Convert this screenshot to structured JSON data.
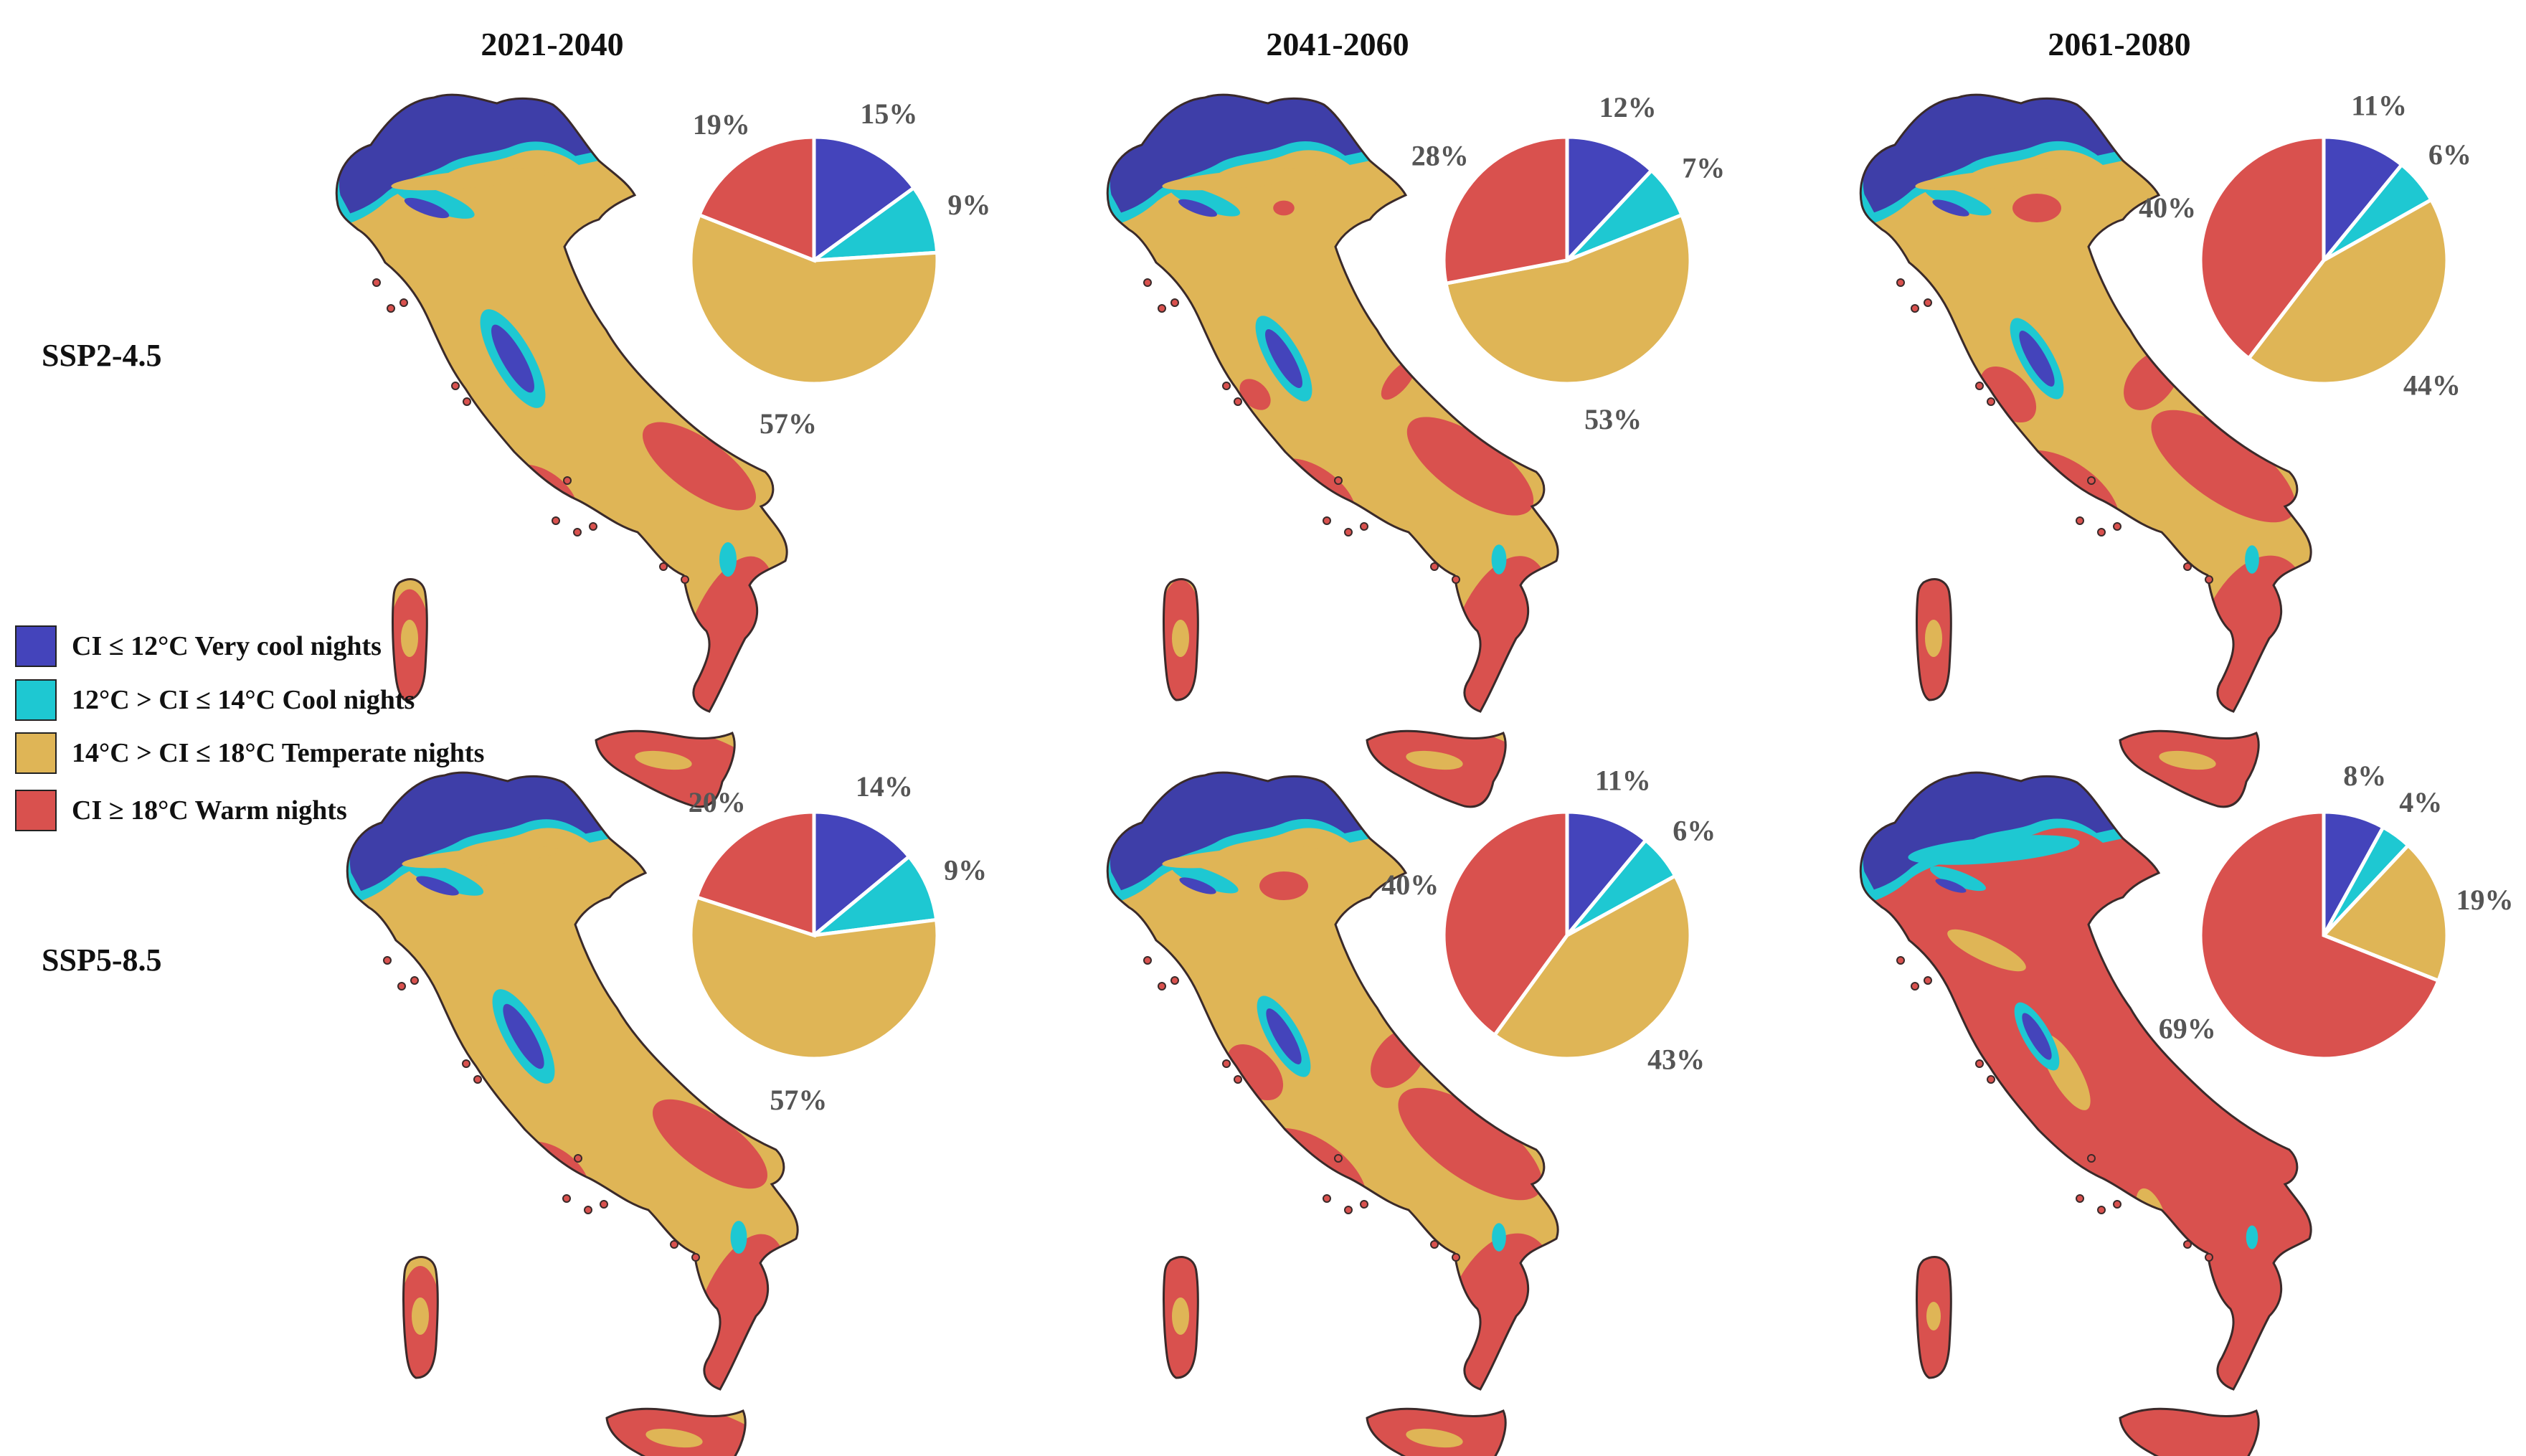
{
  "periods": [
    "2021-2040",
    "2041-2060",
    "2061-2080"
  ],
  "scenarios": [
    "SSP2-4.5",
    "SSP5-8.5"
  ],
  "colors": {
    "very_cool": "#4444bb",
    "cool": "#1ec8d2",
    "temperate": "#dfb556",
    "warm": "#d9514e",
    "mountain_shade": "#3e3ea8",
    "outline": "#3a2a2a"
  },
  "legend": [
    {
      "key": "very_cool",
      "label": "CI ≤ 12°C Very cool nights"
    },
    {
      "key": "cool",
      "label": "12°C > CI ≤ 14°C Cool nights"
    },
    {
      "key": "temperate",
      "label": "14°C > CI ≤ 18°C Temperate nights"
    },
    {
      "key": "warm",
      "label": "CI ≥ 18°C Warm nights"
    }
  ],
  "panels": [
    {
      "scenario": "SSP2-4.5",
      "period": "2021-2040",
      "shares": {
        "very_cool": 15,
        "cool": 9,
        "temperate": 57,
        "warm": 19
      },
      "labels": {
        "very_cool": "15%",
        "cool": "9%",
        "temperate": "57%",
        "warm": "19%"
      }
    },
    {
      "scenario": "SSP2-4.5",
      "period": "2041-2060",
      "shares": {
        "very_cool": 12,
        "cool": 7,
        "temperate": 53,
        "warm": 28
      },
      "labels": {
        "very_cool": "12%",
        "cool": "7%",
        "temperate": "53%",
        "warm": "28%"
      }
    },
    {
      "scenario": "SSP2-4.5",
      "period": "2061-2080",
      "shares": {
        "very_cool": 11,
        "cool": 6,
        "temperate": 44,
        "warm": 40
      },
      "labels": {
        "very_cool": "11%",
        "cool": "6%",
        "temperate": "44%",
        "warm": "40%"
      }
    },
    {
      "scenario": "SSP5-8.5",
      "period": "2021-2040",
      "shares": {
        "very_cool": 14,
        "cool": 9,
        "temperate": 57,
        "warm": 20
      },
      "labels": {
        "very_cool": "14%",
        "cool": "9%",
        "temperate": "57%",
        "warm": "20%"
      }
    },
    {
      "scenario": "SSP5-8.5",
      "period": "2041-2060",
      "shares": {
        "very_cool": 11,
        "cool": 6,
        "temperate": 43,
        "warm": 40
      },
      "labels": {
        "very_cool": "11%",
        "cool": "6%",
        "temperate": "43%",
        "warm": "40%"
      }
    },
    {
      "scenario": "SSP5-8.5",
      "period": "2061-2080",
      "shares": {
        "very_cool": 8,
        "cool": 4,
        "temperate": 19,
        "warm": 69
      },
      "labels": {
        "very_cool": "8%",
        "cool": "4%",
        "temperate": "19%",
        "warm": "69%"
      }
    }
  ]
}
